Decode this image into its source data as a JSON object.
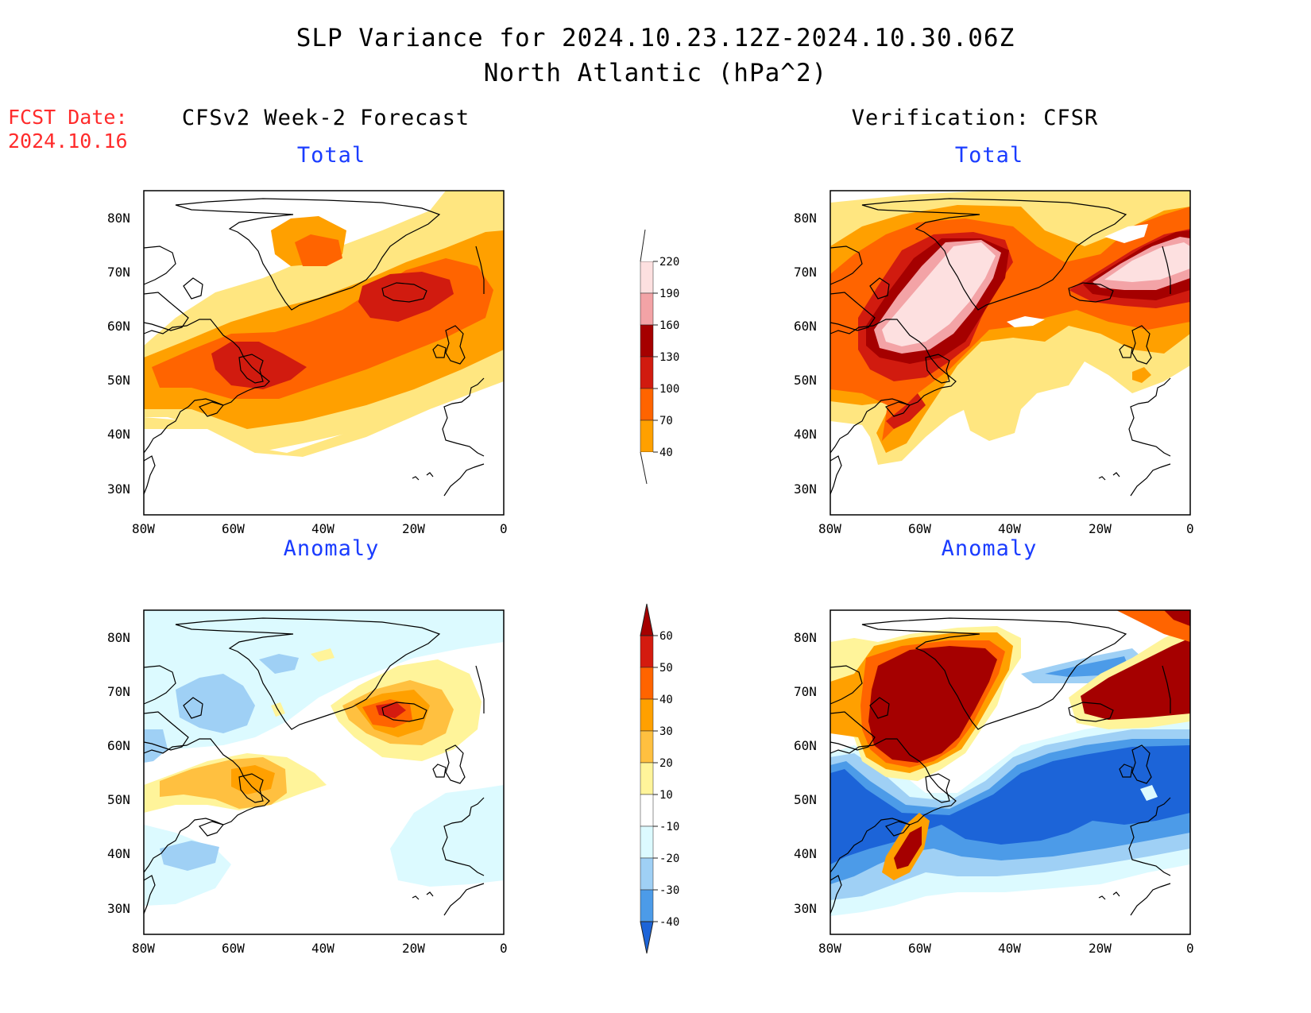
{
  "title": {
    "line1": "SLP Variance for 2024.10.23.12Z-2024.10.30.06Z",
    "line2": "North Atlantic (hPa^2)"
  },
  "forecast_date": {
    "label": "FCST Date:",
    "value": "2024.10.16"
  },
  "columns": {
    "left": "CFSv2 Week-2 Forecast",
    "right": "Verification: CFSR"
  },
  "panels": {
    "fcst_total": "Total",
    "fcst_anomaly": "Anomaly",
    "verif_total": "Total",
    "verif_anomaly": "Anomaly"
  },
  "axes": {
    "lat_labels": [
      "80N",
      "70N",
      "60N",
      "50N",
      "40N",
      "30N"
    ],
    "lon_labels": [
      "80W",
      "60W",
      "40W",
      "20W",
      "0"
    ]
  },
  "colorbars": {
    "total": {
      "levels": [
        "220",
        "190",
        "160",
        "130",
        "100",
        "70",
        "40"
      ],
      "colors": [
        "#ffffff",
        "#fde0e0",
        "#f3a3a6",
        "#a50000",
        "#d11b0f",
        "#ff6400",
        "#ffa000",
        "#ffe680",
        "#ffffff"
      ]
    },
    "anomaly": {
      "levels": [
        "60",
        "50",
        "40",
        "30",
        "20",
        "10",
        "-10",
        "-20",
        "-30",
        "-40"
      ],
      "colors": [
        "#a50000",
        "#d41b0f",
        "#ff6400",
        "#ffa000",
        "#ffc040",
        "#fff49a",
        "#ffffff",
        "#dcfaff",
        "#9fd0f5",
        "#4c9be8",
        "#1c64d8"
      ]
    }
  },
  "map_colors": {
    "land_outline": "#000000",
    "total_40": "#ffe680",
    "total_70": "#ffa000",
    "total_100": "#ff6400",
    "total_130": "#d11b0f",
    "total_160": "#a50000",
    "total_190": "#f3a3a6",
    "total_220": "#fde0e0",
    "anom_pos1": "#fff49a",
    "anom_pos2": "#ffc040",
    "anom_pos3": "#ffa000",
    "anom_pos4": "#ff6400",
    "anom_pos5": "#d41b0f",
    "anom_pos6": "#a50000",
    "anom_neg1": "#dcfaff",
    "anom_neg2": "#9fd0f5",
    "anom_neg3": "#4c9be8",
    "anom_neg4": "#1c64d8"
  }
}
